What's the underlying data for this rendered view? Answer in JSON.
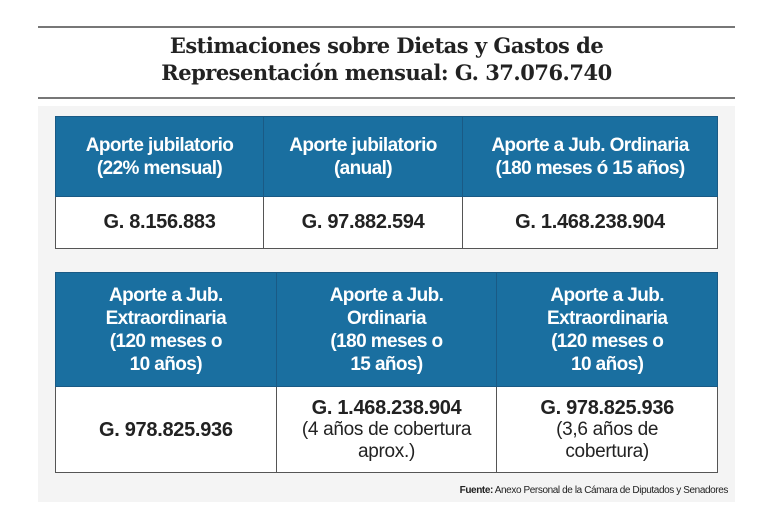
{
  "title": {
    "line1": "Estimaciones sobre Dietas y Gastos de",
    "line2": "Representación mensual: G. 37.076.740"
  },
  "colors": {
    "header_bg": "#1a6fa0",
    "header_text": "#ffffff",
    "panel_bg": "#f4f4f4"
  },
  "table1": {
    "headers": [
      {
        "l1": "Aporte jubilatorio",
        "l2": "(22% mensual)"
      },
      {
        "l1": "Aporte jubilatorio",
        "l2": "(anual)"
      },
      {
        "l1": "Aporte a Jub. Ordinaria",
        "l2": "(180 meses ó 15 años)"
      }
    ],
    "values": [
      "G. 8.156.883",
      "G. 97.882.594",
      "G. 1.468.238.904"
    ]
  },
  "table2": {
    "headers": [
      {
        "l1": "Aporte a Jub.",
        "l2": "Extraordinaria",
        "l3": "(120 meses o",
        "l4": "10 años)"
      },
      {
        "l1": "Aporte a Jub.",
        "l2": "Ordinaria",
        "l3": "(180 meses o",
        "l4": "15 años)"
      },
      {
        "l1": "Aporte a Jub.",
        "l2": "Extraordinaria",
        "l3": "(120 meses o",
        "l4": "10 años)"
      }
    ],
    "values": [
      {
        "amount": "G. 978.825.936",
        "note1": "",
        "note2": ""
      },
      {
        "amount": "G. 1.468.238.904",
        "note1": "(4 años de cobertura",
        "note2": "aprox.)"
      },
      {
        "amount": "G. 978.825.936",
        "note1": "(3,6 años de",
        "note2": "cobertura)"
      }
    ]
  },
  "source": {
    "label": "Fuente:",
    "text": " Anexo Personal de la Cámara de Diputados y Senadores"
  }
}
